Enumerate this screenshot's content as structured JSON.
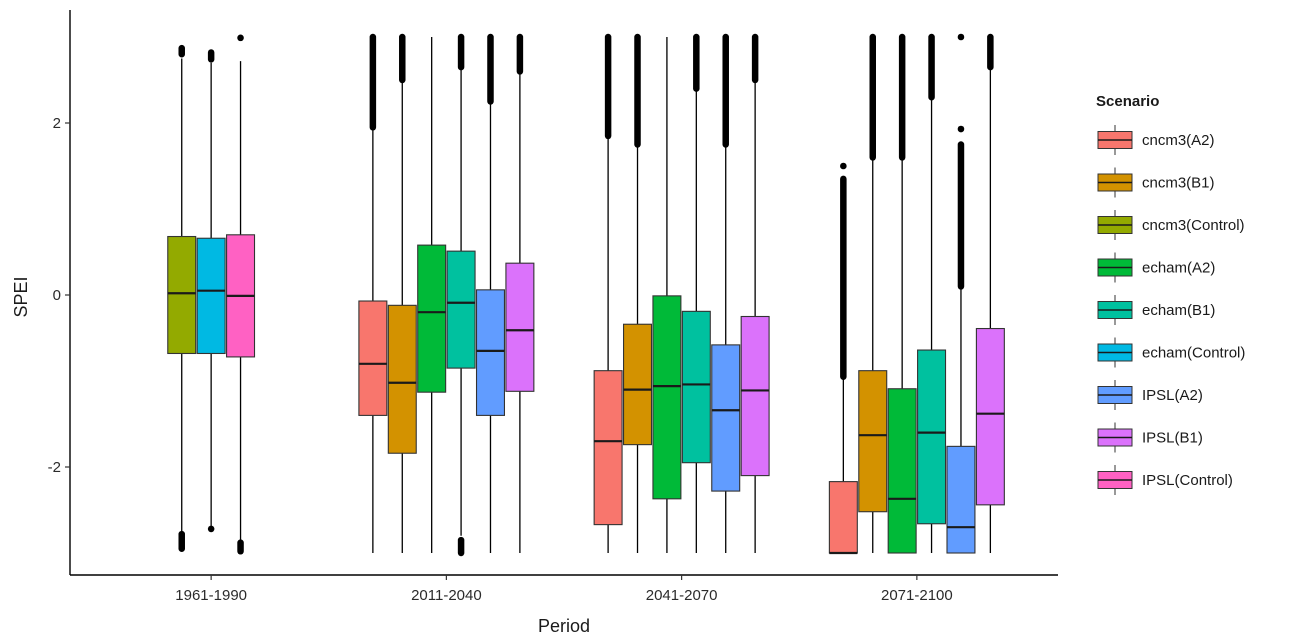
{
  "chart_data": {
    "type": "box",
    "xlabel": "Period",
    "ylabel": "SPEI",
    "ylim": [
      -3.25,
      3.25
    ],
    "y_ticks": [
      -2,
      0,
      2
    ],
    "categories": [
      "1961-1990",
      "2011-2040",
      "2041-2070",
      "2071-2100"
    ],
    "legend": {
      "title": "Scenario",
      "position": "right"
    },
    "grid": false,
    "series": [
      {
        "name": "cncm3(A2)",
        "color": "#F8766D"
      },
      {
        "name": "cncm3(B1)",
        "color": "#D39200"
      },
      {
        "name": "cncm3(Control)",
        "color": "#93AA00"
      },
      {
        "name": "echam(A2)",
        "color": "#00BA38"
      },
      {
        "name": "echam(B1)",
        "color": "#00C19F"
      },
      {
        "name": "echam(Control)",
        "color": "#00B9E3"
      },
      {
        "name": "IPSL(A2)",
        "color": "#619CFF"
      },
      {
        "name": "IPSL(B1)",
        "color": "#DB72FB"
      },
      {
        "name": "IPSL(Control)",
        "color": "#FF61C3"
      }
    ],
    "groups": [
      {
        "category": "1961-1990",
        "boxes": [
          {
            "series": "cncm3(Control)",
            "whisker_low": -2.75,
            "q1": -0.68,
            "median": 0.02,
            "q3": 0.68,
            "whisker_high": 2.75,
            "outliers": [
              [
                -2.95,
                -2.78
              ],
              [
                2.8,
                2.87
              ]
            ]
          },
          {
            "series": "echam(Control)",
            "whisker_low": -2.75,
            "q1": -0.68,
            "median": 0.05,
            "q3": 0.66,
            "whisker_high": 2.7,
            "outliers": [
              [
                -2.74,
                -2.72
              ],
              [
                2.74,
                2.82
              ]
            ]
          },
          {
            "series": "IPSL(Control)",
            "whisker_low": -2.85,
            "q1": -0.72,
            "median": -0.01,
            "q3": 0.7,
            "whisker_high": 2.72,
            "outliers": [
              [
                -2.98,
                -2.88
              ],
              [
                2.99,
                2.99
              ]
            ]
          }
        ]
      },
      {
        "category": "2011-2040",
        "boxes": [
          {
            "series": "cncm3(A2)",
            "whisker_low": -3.0,
            "q1": -1.4,
            "median": -0.8,
            "q3": -0.07,
            "whisker_high": 1.95,
            "outliers": [
              [
                1.95,
                3.0
              ]
            ]
          },
          {
            "series": "cncm3(B1)",
            "whisker_low": -3.0,
            "q1": -1.84,
            "median": -1.02,
            "q3": -0.12,
            "whisker_high": 2.5,
            "outliers": [
              [
                2.5,
                3.0
              ]
            ]
          },
          {
            "series": "echam(A2)",
            "whisker_low": -3.0,
            "q1": -1.13,
            "median": -0.2,
            "q3": 0.58,
            "whisker_high": 3.0,
            "outliers": []
          },
          {
            "series": "echam(B1)",
            "whisker_low": -2.8,
            "q1": -0.85,
            "median": -0.09,
            "q3": 0.51,
            "whisker_high": 2.65,
            "outliers": [
              [
                -3.0,
                -2.85
              ],
              [
                2.65,
                3.0
              ]
            ]
          },
          {
            "series": "IPSL(A2)",
            "whisker_low": -3.0,
            "q1": -1.4,
            "median": -0.65,
            "q3": 0.06,
            "whisker_high": 2.25,
            "outliers": [
              [
                2.25,
                3.0
              ]
            ]
          },
          {
            "series": "IPSL(B1)",
            "whisker_low": -3.0,
            "q1": -1.12,
            "median": -0.41,
            "q3": 0.37,
            "whisker_high": 2.6,
            "outliers": [
              [
                2.6,
                3.0
              ]
            ]
          }
        ]
      },
      {
        "category": "2041-2070",
        "boxes": [
          {
            "series": "cncm3(A2)",
            "whisker_low": -3.0,
            "q1": -2.67,
            "median": -1.7,
            "q3": -0.88,
            "whisker_high": 1.85,
            "outliers": [
              [
                1.85,
                3.0
              ]
            ]
          },
          {
            "series": "cncm3(B1)",
            "whisker_low": -3.0,
            "q1": -1.74,
            "median": -1.1,
            "q3": -0.34,
            "whisker_high": 1.75,
            "outliers": [
              [
                1.75,
                3.0
              ]
            ]
          },
          {
            "series": "echam(A2)",
            "whisker_low": -3.0,
            "q1": -2.37,
            "median": -1.06,
            "q3": -0.01,
            "whisker_high": 3.0,
            "outliers": []
          },
          {
            "series": "echam(B1)",
            "whisker_low": -3.0,
            "q1": -1.95,
            "median": -1.04,
            "q3": -0.19,
            "whisker_high": 2.4,
            "outliers": [
              [
                2.4,
                3.0
              ]
            ]
          },
          {
            "series": "IPSL(A2)",
            "whisker_low": -3.0,
            "q1": -2.28,
            "median": -1.34,
            "q3": -0.58,
            "whisker_high": 1.75,
            "outliers": [
              [
                1.75,
                3.0
              ]
            ]
          },
          {
            "series": "IPSL(B1)",
            "whisker_low": -3.0,
            "q1": -2.1,
            "median": -1.11,
            "q3": -0.25,
            "whisker_high": 2.5,
            "outliers": [
              [
                2.5,
                3.0
              ]
            ]
          }
        ]
      },
      {
        "category": "2071-2100",
        "boxes": [
          {
            "series": "cncm3(A2)",
            "whisker_low": -3.0,
            "q1": -3.0,
            "median": -3.0,
            "q3": -2.17,
            "whisker_high": -0.95,
            "outliers": [
              [
                -0.95,
                1.35
              ],
              [
                1.5,
                1.5
              ]
            ]
          },
          {
            "series": "cncm3(B1)",
            "whisker_low": -3.0,
            "q1": -2.52,
            "median": -1.63,
            "q3": -0.88,
            "whisker_high": 1.6,
            "outliers": [
              [
                1.6,
                3.0
              ]
            ]
          },
          {
            "series": "echam(A2)",
            "whisker_low": -3.0,
            "q1": -3.0,
            "median": -2.37,
            "q3": -1.09,
            "whisker_high": 1.6,
            "outliers": [
              [
                1.6,
                3.0
              ]
            ]
          },
          {
            "series": "echam(B1)",
            "whisker_low": -3.0,
            "q1": -2.66,
            "median": -1.6,
            "q3": -0.64,
            "whisker_high": 2.3,
            "outliers": [
              [
                2.3,
                3.0
              ]
            ]
          },
          {
            "series": "IPSL(A2)",
            "whisker_low": -3.0,
            "q1": -3.0,
            "median": -2.7,
            "q3": -1.76,
            "whisker_high": 0.1,
            "outliers": [
              [
                0.1,
                1.75
              ],
              [
                1.93,
                1.93
              ],
              [
                3.0,
                3.0
              ]
            ]
          },
          {
            "series": "IPSL(B1)",
            "whisker_low": -3.0,
            "q1": -2.44,
            "median": -1.38,
            "q3": -0.39,
            "whisker_high": 2.65,
            "outliers": [
              [
                2.65,
                3.0
              ]
            ]
          }
        ]
      }
    ]
  }
}
